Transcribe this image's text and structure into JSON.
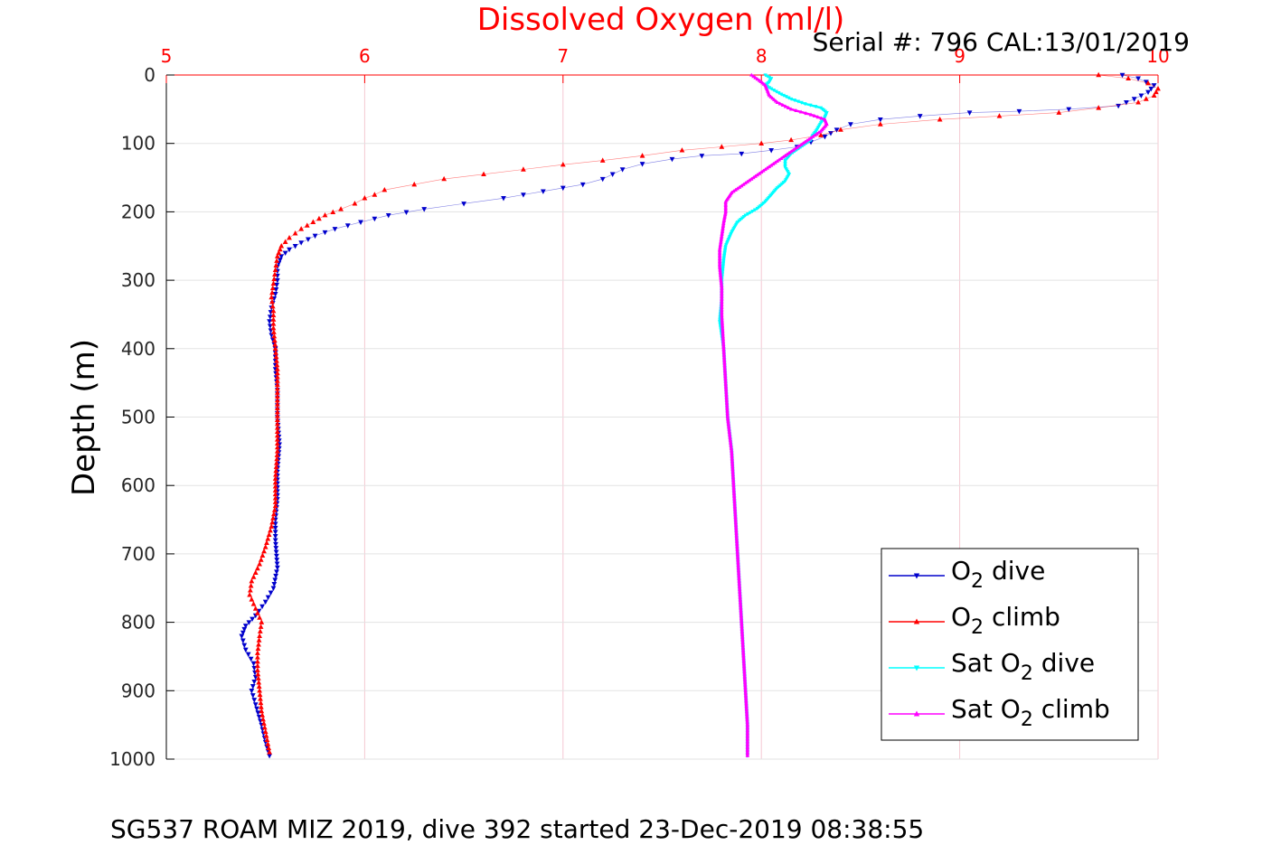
{
  "chart_data": {
    "type": "scatter",
    "title": "Dissolved Oxygen (ml/l)",
    "serial_label": "Serial #: 796  CAL:13/01/2019",
    "ylabel": "Depth (m)",
    "footer": "SG537 ROAM MIZ 2019, dive 392 started 23-Dec-2019 08:38:55",
    "xlim": [
      5,
      10
    ],
    "ylim": [
      0,
      1000
    ],
    "y_reversed": true,
    "x_axis_position": "top",
    "x_ticks": [
      "5",
      "6",
      "7",
      "8",
      "9",
      "10"
    ],
    "y_ticks": [
      "0",
      "100",
      "200",
      "300",
      "400",
      "500",
      "600",
      "700",
      "800",
      "900",
      "1000"
    ],
    "grid": true,
    "legend_position": "bottom-right",
    "colors": {
      "title": "#ff0000",
      "x_tick": "#ff0000",
      "grid": "#f4c8d2",
      "axis": "#000000"
    },
    "series": [
      {
        "name_main": "O",
        "name_sub": "2",
        "name_tail": " dive",
        "color": "#0000cc",
        "marker": "triangle-down",
        "points": [
          [
            9.82,
            0
          ],
          [
            9.9,
            5
          ],
          [
            9.98,
            15
          ],
          [
            9.95,
            25
          ],
          [
            9.88,
            35
          ],
          [
            9.8,
            45
          ],
          [
            9.55,
            50
          ],
          [
            9.3,
            53
          ],
          [
            9.05,
            55
          ],
          [
            8.8,
            60
          ],
          [
            8.6,
            65
          ],
          [
            8.45,
            72
          ],
          [
            8.38,
            80
          ],
          [
            8.32,
            90
          ],
          [
            8.25,
            98
          ],
          [
            8.18,
            105
          ],
          [
            8.05,
            110
          ],
          [
            7.9,
            115
          ],
          [
            7.7,
            118
          ],
          [
            7.55,
            123
          ],
          [
            7.4,
            130
          ],
          [
            7.3,
            138
          ],
          [
            7.25,
            145
          ],
          [
            7.2,
            152
          ],
          [
            7.1,
            160
          ],
          [
            6.9,
            170
          ],
          [
            6.7,
            180
          ],
          [
            6.5,
            188
          ],
          [
            6.3,
            196
          ],
          [
            6.12,
            205
          ],
          [
            5.98,
            215
          ],
          [
            5.85,
            225
          ],
          [
            5.75,
            235
          ],
          [
            5.68,
            245
          ],
          [
            5.62,
            255
          ],
          [
            5.58,
            265
          ],
          [
            5.56,
            280
          ],
          [
            5.56,
            300
          ],
          [
            5.55,
            320
          ],
          [
            5.53,
            340
          ],
          [
            5.52,
            360
          ],
          [
            5.53,
            380
          ],
          [
            5.55,
            400
          ],
          [
            5.55,
            430
          ],
          [
            5.56,
            460
          ],
          [
            5.56,
            500
          ],
          [
            5.57,
            540
          ],
          [
            5.56,
            580
          ],
          [
            5.56,
            620
          ],
          [
            5.55,
            650
          ],
          [
            5.55,
            680
          ],
          [
            5.56,
            720
          ],
          [
            5.54,
            750
          ],
          [
            5.5,
            770
          ],
          [
            5.45,
            790
          ],
          [
            5.4,
            805
          ],
          [
            5.38,
            820
          ],
          [
            5.4,
            840
          ],
          [
            5.44,
            860
          ],
          [
            5.45,
            880
          ],
          [
            5.43,
            900
          ],
          [
            5.45,
            920
          ],
          [
            5.48,
            950
          ],
          [
            5.5,
            975
          ],
          [
            5.52,
            995
          ]
        ]
      },
      {
        "name_main": "O",
        "name_sub": "2",
        "name_tail": " climb",
        "color": "#ff0000",
        "marker": "triangle-up",
        "points": [
          [
            9.7,
            0
          ],
          [
            9.85,
            5
          ],
          [
            9.95,
            12
          ],
          [
            10.0,
            20
          ],
          [
            9.98,
            30
          ],
          [
            9.9,
            40
          ],
          [
            9.7,
            48
          ],
          [
            9.5,
            55
          ],
          [
            9.2,
            60
          ],
          [
            8.9,
            65
          ],
          [
            8.6,
            72
          ],
          [
            8.4,
            80
          ],
          [
            8.3,
            88
          ],
          [
            8.15,
            95
          ],
          [
            8.0,
            100
          ],
          [
            7.8,
            105
          ],
          [
            7.6,
            110
          ],
          [
            7.4,
            118
          ],
          [
            7.2,
            125
          ],
          [
            7.0,
            131
          ],
          [
            6.8,
            138
          ],
          [
            6.6,
            145
          ],
          [
            6.4,
            152
          ],
          [
            6.25,
            160
          ],
          [
            6.1,
            168
          ],
          [
            6.05,
            175
          ],
          [
            6.0,
            180
          ],
          [
            5.95,
            188
          ],
          [
            5.88,
            196
          ],
          [
            5.8,
            205
          ],
          [
            5.74,
            215
          ],
          [
            5.68,
            225
          ],
          [
            5.62,
            238
          ],
          [
            5.58,
            250
          ],
          [
            5.56,
            265
          ],
          [
            5.55,
            285
          ],
          [
            5.54,
            305
          ],
          [
            5.53,
            325
          ],
          [
            5.54,
            345
          ],
          [
            5.54,
            370
          ],
          [
            5.55,
            400
          ],
          [
            5.56,
            430
          ],
          [
            5.56,
            470
          ],
          [
            5.56,
            510
          ],
          [
            5.56,
            550
          ],
          [
            5.55,
            590
          ],
          [
            5.55,
            630
          ],
          [
            5.53,
            660
          ],
          [
            5.5,
            690
          ],
          [
            5.47,
            715
          ],
          [
            5.43,
            740
          ],
          [
            5.42,
            760
          ],
          [
            5.45,
            780
          ],
          [
            5.48,
            800
          ],
          [
            5.47,
            820
          ],
          [
            5.46,
            845
          ],
          [
            5.46,
            870
          ],
          [
            5.47,
            900
          ],
          [
            5.48,
            930
          ],
          [
            5.5,
            960
          ],
          [
            5.52,
            990
          ]
        ]
      },
      {
        "name_main": "Sat O",
        "name_sub": "2",
        "name_tail": " dive",
        "color": "#00ffff",
        "marker": "triangle-down",
        "points": [
          [
            8.02,
            0
          ],
          [
            8.05,
            5
          ],
          [
            8.04,
            10
          ],
          [
            8.02,
            15
          ],
          [
            8.05,
            20
          ],
          [
            8.1,
            28
          ],
          [
            8.15,
            35
          ],
          [
            8.22,
            42
          ],
          [
            8.3,
            48
          ],
          [
            8.33,
            55
          ],
          [
            8.32,
            62
          ],
          [
            8.3,
            70
          ],
          [
            8.28,
            80
          ],
          [
            8.26,
            88
          ],
          [
            8.25,
            95
          ],
          [
            8.2,
            105
          ],
          [
            8.15,
            115
          ],
          [
            8.12,
            125
          ],
          [
            8.12,
            135
          ],
          [
            8.14,
            145
          ],
          [
            8.12,
            155
          ],
          [
            8.08,
            165
          ],
          [
            8.05,
            175
          ],
          [
            8.02,
            185
          ],
          [
            7.98,
            195
          ],
          [
            7.92,
            205
          ],
          [
            7.88,
            215
          ],
          [
            7.85,
            230
          ],
          [
            7.82,
            250
          ],
          [
            7.81,
            270
          ],
          [
            7.8,
            300
          ],
          [
            7.8,
            330
          ],
          [
            7.79,
            360
          ],
          [
            7.81,
            400
          ],
          [
            7.82,
            450
          ],
          [
            7.83,
            500
          ],
          [
            7.85,
            550
          ],
          [
            7.86,
            600
          ],
          [
            7.87,
            650
          ],
          [
            7.88,
            700
          ],
          [
            7.89,
            750
          ],
          [
            7.9,
            800
          ],
          [
            7.91,
            850
          ],
          [
            7.92,
            900
          ],
          [
            7.93,
            950
          ],
          [
            7.93,
            995
          ]
        ]
      },
      {
        "name_main": "Sat O",
        "name_sub": "2",
        "name_tail": " climb",
        "color": "#ff00ff",
        "marker": "triangle-up",
        "points": [
          [
            7.95,
            0
          ],
          [
            7.99,
            8
          ],
          [
            8.02,
            15
          ],
          [
            8.03,
            22
          ],
          [
            8.04,
            30
          ],
          [
            8.08,
            40
          ],
          [
            8.15,
            50
          ],
          [
            8.25,
            58
          ],
          [
            8.32,
            65
          ],
          [
            8.33,
            72
          ],
          [
            8.3,
            82
          ],
          [
            8.25,
            92
          ],
          [
            8.2,
            102
          ],
          [
            8.15,
            112
          ],
          [
            8.1,
            122
          ],
          [
            8.05,
            132
          ],
          [
            8.0,
            142
          ],
          [
            7.95,
            152
          ],
          [
            7.9,
            162
          ],
          [
            7.85,
            172
          ],
          [
            7.82,
            185
          ],
          [
            7.82,
            200
          ],
          [
            7.81,
            215
          ],
          [
            7.8,
            235
          ],
          [
            7.79,
            255
          ],
          [
            7.79,
            280
          ],
          [
            7.8,
            310
          ],
          [
            7.8,
            350
          ],
          [
            7.81,
            400
          ],
          [
            7.82,
            450
          ],
          [
            7.83,
            500
          ],
          [
            7.85,
            550
          ],
          [
            7.86,
            600
          ],
          [
            7.87,
            650
          ],
          [
            7.88,
            700
          ],
          [
            7.89,
            750
          ],
          [
            7.9,
            800
          ],
          [
            7.91,
            850
          ],
          [
            7.92,
            900
          ],
          [
            7.93,
            950
          ],
          [
            7.93,
            995
          ]
        ]
      }
    ]
  }
}
